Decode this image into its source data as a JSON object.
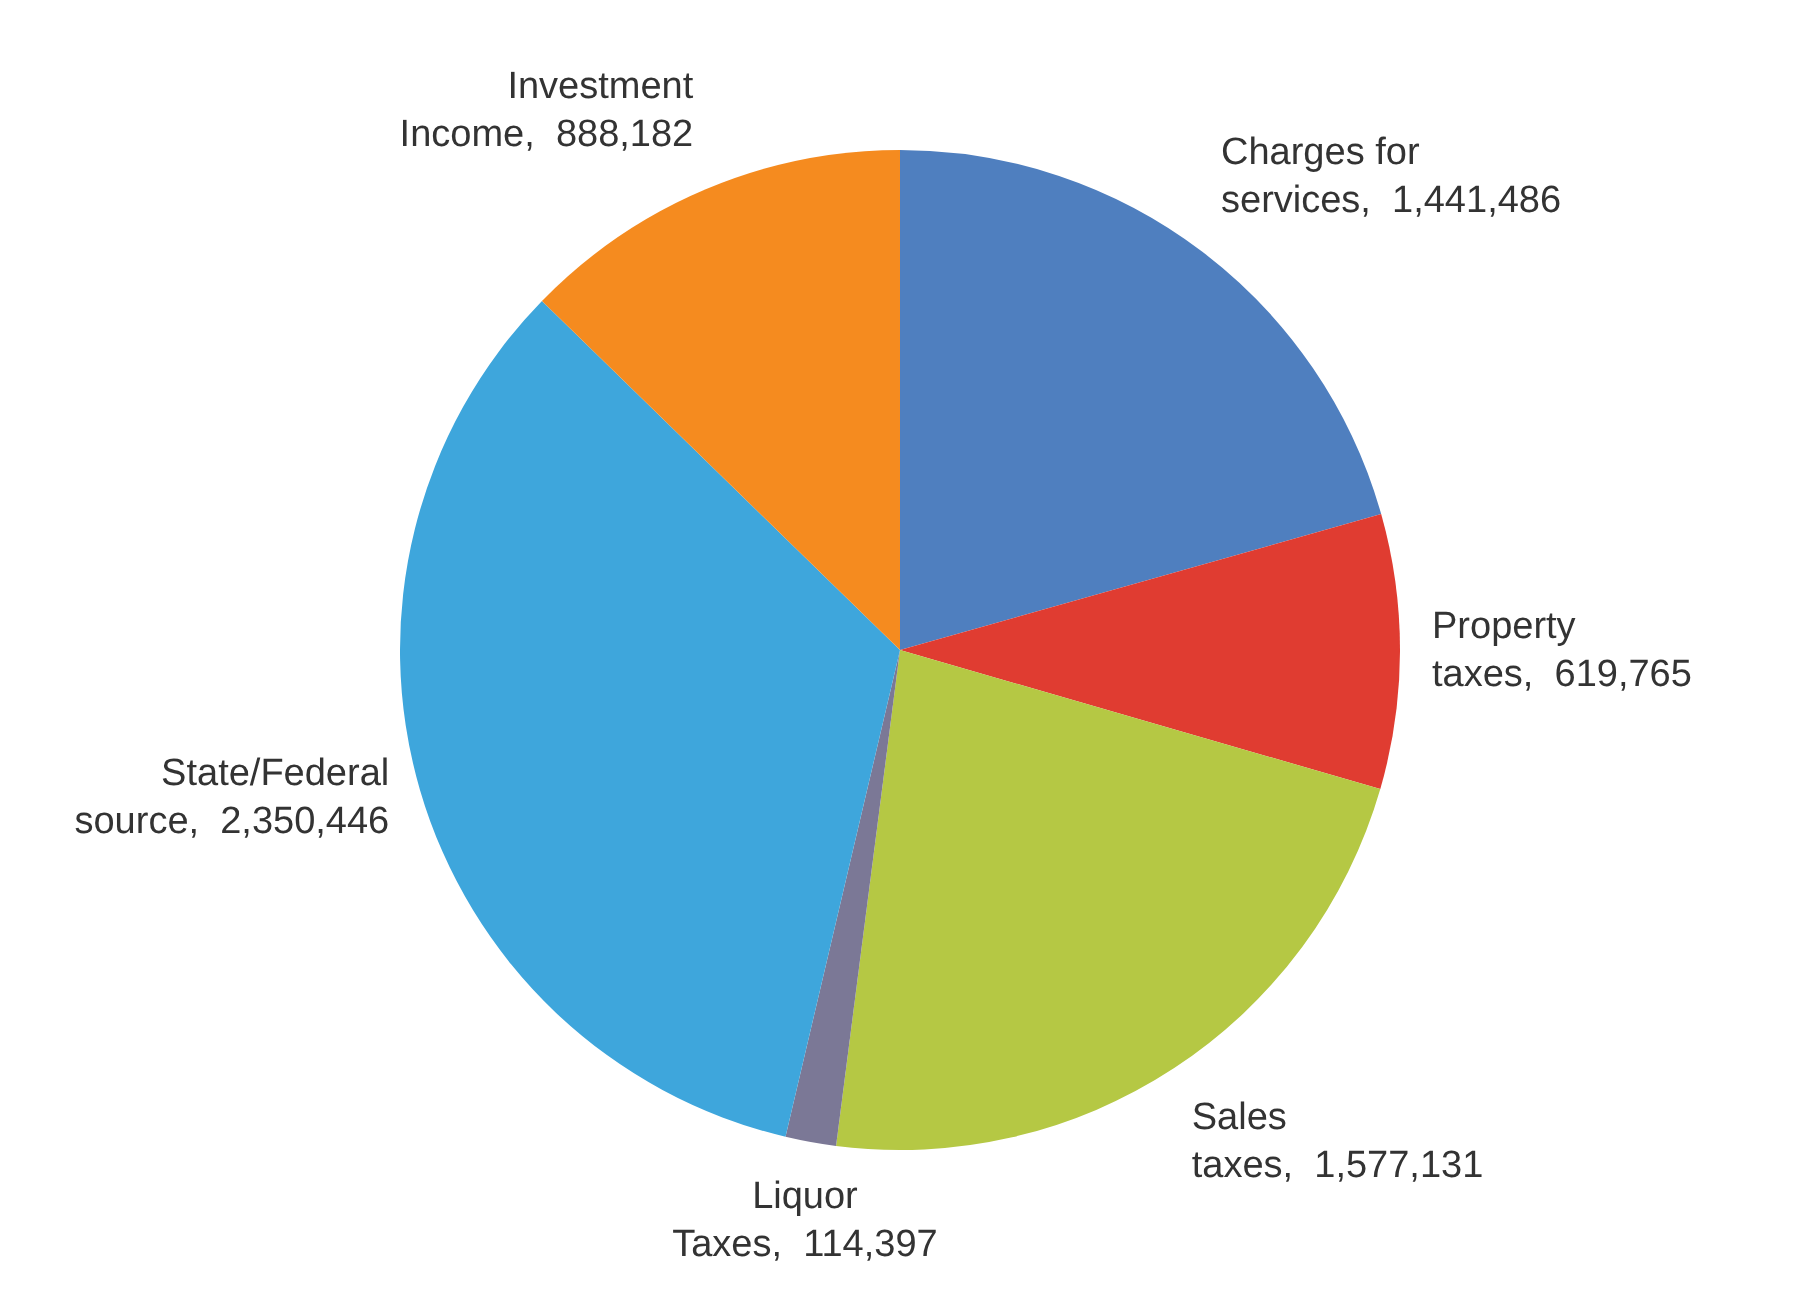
{
  "chart_data": {
    "type": "pie",
    "categories": [
      "Charges for services",
      "Property taxes",
      "Sales taxes",
      "Liquor Taxes",
      "State/Federal source",
      "Investment Income"
    ],
    "values": [
      1441486,
      619765,
      1577131,
      114397,
      2350446,
      888182
    ],
    "value_labels": [
      "1,441,486",
      "619,765",
      "1,577,131",
      "114,397",
      "2,350,446",
      "888,182"
    ],
    "colors": [
      "#4f7fbf",
      "#e03c31",
      "#b5c844",
      "#7b7896",
      "#3ea6dc",
      "#f58b1f"
    ],
    "legend": false
  }
}
